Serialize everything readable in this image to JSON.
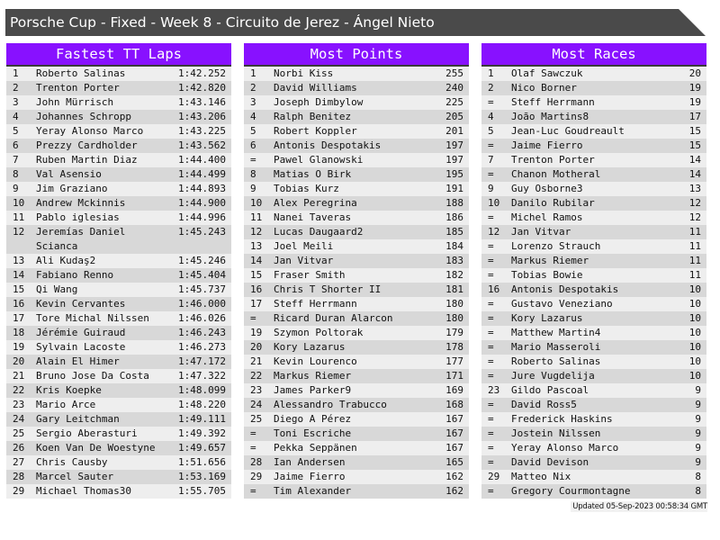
{
  "title": "Porsche Cup - Fixed - Week 8 - Circuito de Jerez - Ángel Nieto",
  "panels": [
    {
      "header": "Fastest TT Laps",
      "rows": [
        [
          "1",
          "Roberto Salinas",
          "1:42.252"
        ],
        [
          "2",
          "Trenton Porter",
          "1:42.820"
        ],
        [
          "3",
          "John Mürrisch",
          "1:43.146"
        ],
        [
          "4",
          "Johannes Schropp",
          "1:43.206"
        ],
        [
          "5",
          "Yeray Alonso Marco",
          "1:43.225"
        ],
        [
          "6",
          "Prezzy Cardholder",
          "1:43.562"
        ],
        [
          "7",
          "Ruben Martin Diaz",
          "1:44.400"
        ],
        [
          "8",
          "Val Asensio",
          "1:44.499"
        ],
        [
          "9",
          "Jim Graziano",
          "1:44.893"
        ],
        [
          "10",
          "Andrew Mckinnis",
          "1:44.900"
        ],
        [
          "11",
          "Pablo iglesias",
          "1:44.996"
        ],
        [
          "12",
          "Jeremías Daniel Scianca",
          "1:45.243"
        ],
        [
          "13",
          "Ali Kudaş2",
          "1:45.246"
        ],
        [
          "14",
          "Fabiano Renno",
          "1:45.404"
        ],
        [
          "15",
          "Qi Wang",
          "1:45.737"
        ],
        [
          "16",
          "Kevin Cervantes",
          "1:46.000"
        ],
        [
          "17",
          "Tore Michal Nilssen",
          "1:46.026"
        ],
        [
          "18",
          "Jérémie Guiraud",
          "1:46.243"
        ],
        [
          "19",
          "Sylvain Lacoste",
          "1:46.273"
        ],
        [
          "20",
          "Alain El Himer",
          "1:47.172"
        ],
        [
          "21",
          "Bruno Jose Da Costa",
          "1:47.322"
        ],
        [
          "22",
          "Kris Koepke",
          "1:48.099"
        ],
        [
          "23",
          "Mario Arce",
          "1:48.220"
        ],
        [
          "24",
          "Gary Leitchman",
          "1:49.111"
        ],
        [
          "25",
          "Sergio Aberasturi",
          "1:49.392"
        ],
        [
          "26",
          "Koen Van De Woestyne",
          "1:49.657"
        ],
        [
          "27",
          "Chris Causby",
          "1:51.656"
        ],
        [
          "28",
          "Marcel Sauter",
          "1:53.169"
        ],
        [
          "29",
          "Michael Thomas30",
          "1:55.705"
        ]
      ]
    },
    {
      "header": "Most Points",
      "rows": [
        [
          "1",
          "Norbi Kiss",
          "255"
        ],
        [
          "2",
          "David Williams",
          "240"
        ],
        [
          "3",
          "Joseph Dimbylow",
          "225"
        ],
        [
          "4",
          "Ralph Benitez",
          "205"
        ],
        [
          "5",
          "Robert Koppler",
          "201"
        ],
        [
          "6",
          "Antonis Despotakis",
          "197"
        ],
        [
          "=",
          "Pawel Glanowski",
          "197"
        ],
        [
          "8",
          "Matias O Birk",
          "195"
        ],
        [
          "9",
          "Tobias Kurz",
          "191"
        ],
        [
          "10",
          "Alex Peregrina",
          "188"
        ],
        [
          "11",
          "Nanei Taveras",
          "186"
        ],
        [
          "12",
          "Lucas Daugaard2",
          "185"
        ],
        [
          "13",
          "Joel Meili",
          "184"
        ],
        [
          "14",
          "Jan Vitvar",
          "183"
        ],
        [
          "15",
          "Fraser Smith",
          "182"
        ],
        [
          "16",
          "Chris T Shorter II",
          "181"
        ],
        [
          "17",
          "Steff Herrmann",
          "180"
        ],
        [
          "=",
          "Ricard Duran Alarcon",
          "180"
        ],
        [
          "19",
          "Szymon Poltorak",
          "179"
        ],
        [
          "20",
          "Kory Lazarus",
          "178"
        ],
        [
          "21",
          "Kevin Lourenco",
          "177"
        ],
        [
          "22",
          "Markus Riemer",
          "171"
        ],
        [
          "23",
          "James Parker9",
          "169"
        ],
        [
          "24",
          "Alessandro Trabucco",
          "168"
        ],
        [
          "25",
          "Diego A Pérez",
          "167"
        ],
        [
          "=",
          "Toni Escriche",
          "167"
        ],
        [
          "=",
          "Pekka Seppänen",
          "167"
        ],
        [
          "28",
          "Ian Andersen",
          "165"
        ],
        [
          "29",
          "Jaime Fierro",
          "162"
        ],
        [
          "=",
          "Tim Alexander",
          "162"
        ]
      ]
    },
    {
      "header": "Most Races",
      "rows": [
        [
          "1",
          "Olaf Sawczuk",
          "20"
        ],
        [
          "2",
          "Nico Borner",
          "19"
        ],
        [
          "=",
          "Steff Herrmann",
          "19"
        ],
        [
          "4",
          "João Martins8",
          "17"
        ],
        [
          "5",
          "Jean-Luc Goudreault",
          "15"
        ],
        [
          "=",
          "Jaime Fierro",
          "15"
        ],
        [
          "7",
          "Trenton Porter",
          "14"
        ],
        [
          "=",
          "Chanon Motheral",
          "14"
        ],
        [
          "9",
          "Guy Osborne3",
          "13"
        ],
        [
          "10",
          "Danilo Rubilar",
          "12"
        ],
        [
          "=",
          "Michel Ramos",
          "12"
        ],
        [
          "12",
          "Jan Vitvar",
          "11"
        ],
        [
          "=",
          "Lorenzo Strauch",
          "11"
        ],
        [
          "=",
          "Markus Riemer",
          "11"
        ],
        [
          "=",
          "Tobias Bowie",
          "11"
        ],
        [
          "16",
          "Antonis Despotakis",
          "10"
        ],
        [
          "=",
          "Gustavo Veneziano",
          "10"
        ],
        [
          "=",
          "Kory Lazarus",
          "10"
        ],
        [
          "=",
          "Matthew Martin4",
          "10"
        ],
        [
          "=",
          "Mario Masseroli",
          "10"
        ],
        [
          "=",
          "Roberto Salinas",
          "10"
        ],
        [
          "=",
          "Jure Vugdelija",
          "10"
        ],
        [
          "23",
          "Gildo Pascoal",
          "9"
        ],
        [
          "=",
          "David Ross5",
          "9"
        ],
        [
          "=",
          "Frederick Haskins",
          "9"
        ],
        [
          "=",
          "Jostein Nilssen",
          "9"
        ],
        [
          "=",
          "Yeray Alonso Marco",
          "9"
        ],
        [
          "=",
          "David Devison",
          "9"
        ],
        [
          "29",
          "Matteo Nix",
          "8"
        ],
        [
          "=",
          "Gregory Courmontagne",
          "8"
        ]
      ]
    }
  ],
  "footer": "Updated 05-Sep-2023 00:58:34 GMT",
  "colors": {
    "header_bg": "#8811ff",
    "title_bg": "#4a4a4a",
    "row_light": "#eeeeee",
    "row_dark": "#d8d8d8"
  }
}
